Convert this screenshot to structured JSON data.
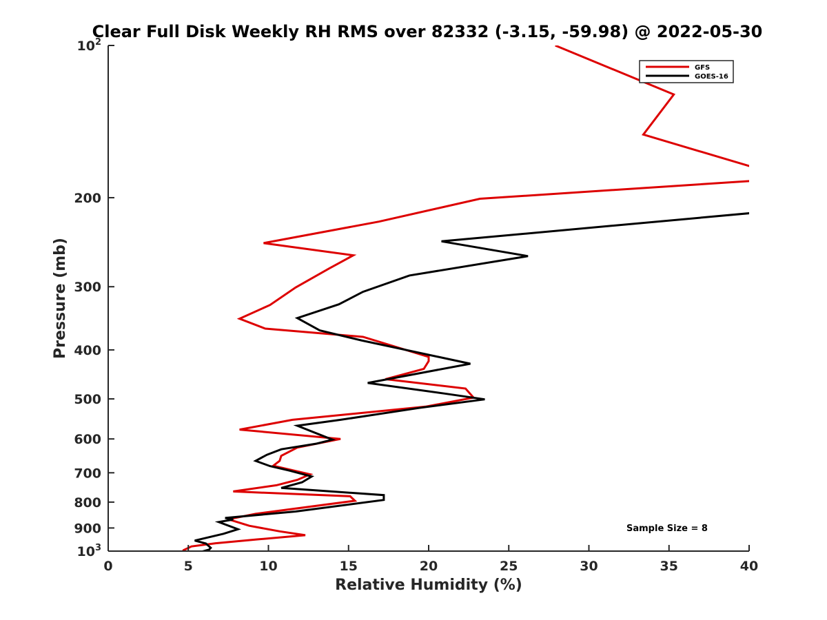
{
  "chart_data": {
    "type": "line",
    "title": "Clear Full Disk Weekly RH RMS over 82332 (-3.15, -59.98) @ 2022-05-30",
    "xlabel": "Relative Humidity (%)",
    "ylabel": "Pressure (mb)",
    "xlim": [
      0,
      40
    ],
    "ylim": [
      100,
      1000
    ],
    "y_scale": "log",
    "y_reversed": true,
    "grid": false,
    "legend_position": "top-right",
    "annotation": "Sample Size = 8",
    "x_ticks": [
      {
        "value": 0,
        "label": "0"
      },
      {
        "value": 5,
        "label": "5"
      },
      {
        "value": 10,
        "label": "10"
      },
      {
        "value": 15,
        "label": "15"
      },
      {
        "value": 20,
        "label": "20"
      },
      {
        "value": 25,
        "label": "25"
      },
      {
        "value": 30,
        "label": "30"
      },
      {
        "value": 35,
        "label": "35"
      },
      {
        "value": 40,
        "label": "40"
      }
    ],
    "y_ticks": [
      {
        "value": 100,
        "base": "10",
        "exp": "2"
      },
      {
        "value": 200,
        "base": "200",
        "exp": ""
      },
      {
        "value": 300,
        "base": "300",
        "exp": ""
      },
      {
        "value": 400,
        "base": "400",
        "exp": ""
      },
      {
        "value": 500,
        "base": "500",
        "exp": ""
      },
      {
        "value": 600,
        "base": "600",
        "exp": ""
      },
      {
        "value": 700,
        "base": "700",
        "exp": ""
      },
      {
        "value": 800,
        "base": "800",
        "exp": ""
      },
      {
        "value": 900,
        "base": "900",
        "exp": ""
      },
      {
        "value": 1000,
        "base": "10",
        "exp": "3"
      }
    ],
    "series": [
      {
        "name": "GFS",
        "color": "#dd0000",
        "points": [
          [
            27.9,
            100
          ],
          [
            35.3,
            125
          ],
          [
            33.4,
            150
          ],
          [
            40.5,
            175
          ],
          [
            40.5,
            185
          ],
          [
            23.2,
            201
          ],
          [
            16.9,
            223
          ],
          [
            9.7,
            246
          ],
          [
            15.3,
            260
          ],
          [
            13.8,
            276
          ],
          [
            11.7,
            301
          ],
          [
            10.1,
            326
          ],
          [
            8.2,
            347
          ],
          [
            9.8,
            363
          ],
          [
            15.9,
            377
          ],
          [
            20.0,
            413
          ],
          [
            20.0,
            421
          ],
          [
            19.7,
            436
          ],
          [
            17.3,
            457
          ],
          [
            22.3,
            477
          ],
          [
            22.8,
            497
          ],
          [
            19.8,
            518
          ],
          [
            11.5,
            550
          ],
          [
            8.2,
            575
          ],
          [
            14.5,
            600
          ],
          [
            11.8,
            624
          ],
          [
            10.8,
            648
          ],
          [
            10.7,
            663
          ],
          [
            10.3,
            678
          ],
          [
            12.6,
            705
          ],
          [
            11.8,
            723
          ],
          [
            10.5,
            741
          ],
          [
            7.8,
            762
          ],
          [
            15.1,
            779
          ],
          [
            15.4,
            795
          ],
          [
            9.2,
            844
          ],
          [
            7.5,
            865
          ],
          [
            8.8,
            891
          ],
          [
            10.7,
            914
          ],
          [
            12.3,
            930
          ],
          [
            9.3,
            948
          ],
          [
            6.7,
            965
          ],
          [
            5.2,
            979
          ],
          [
            4.7,
            996
          ],
          [
            4.6,
            1010
          ]
        ]
      },
      {
        "name": "GOES-16",
        "color": "#000000",
        "points": [
          [
            40.5,
            214
          ],
          [
            20.8,
            244
          ],
          [
            26.2,
            261
          ],
          [
            18.8,
            285
          ],
          [
            15.9,
            307
          ],
          [
            14.4,
            325
          ],
          [
            11.8,
            346
          ],
          [
            13.2,
            366
          ],
          [
            15.8,
            383
          ],
          [
            22.6,
            426
          ],
          [
            16.2,
            465
          ],
          [
            21.0,
            488
          ],
          [
            23.5,
            501
          ],
          [
            19.4,
            521
          ],
          [
            14.5,
            550
          ],
          [
            11.8,
            565
          ],
          [
            13.3,
            590
          ],
          [
            14.0,
            602
          ],
          [
            13.0,
            613
          ],
          [
            10.8,
            629
          ],
          [
            9.9,
            645
          ],
          [
            9.2,
            663
          ],
          [
            10.1,
            679
          ],
          [
            11.3,
            693
          ],
          [
            12.7,
            712
          ],
          [
            12.1,
            731
          ],
          [
            10.8,
            750
          ],
          [
            17.2,
            775
          ],
          [
            17.2,
            792
          ],
          [
            11.7,
            835
          ],
          [
            7.3,
            860
          ],
          [
            7.8,
            866
          ],
          [
            6.9,
            876
          ],
          [
            8.1,
            905
          ],
          [
            7.2,
            924
          ],
          [
            5.4,
            953
          ],
          [
            6.1,
            966
          ],
          [
            6.4,
            985
          ],
          [
            6.3,
            993
          ],
          [
            5.7,
            1005
          ]
        ]
      }
    ]
  }
}
